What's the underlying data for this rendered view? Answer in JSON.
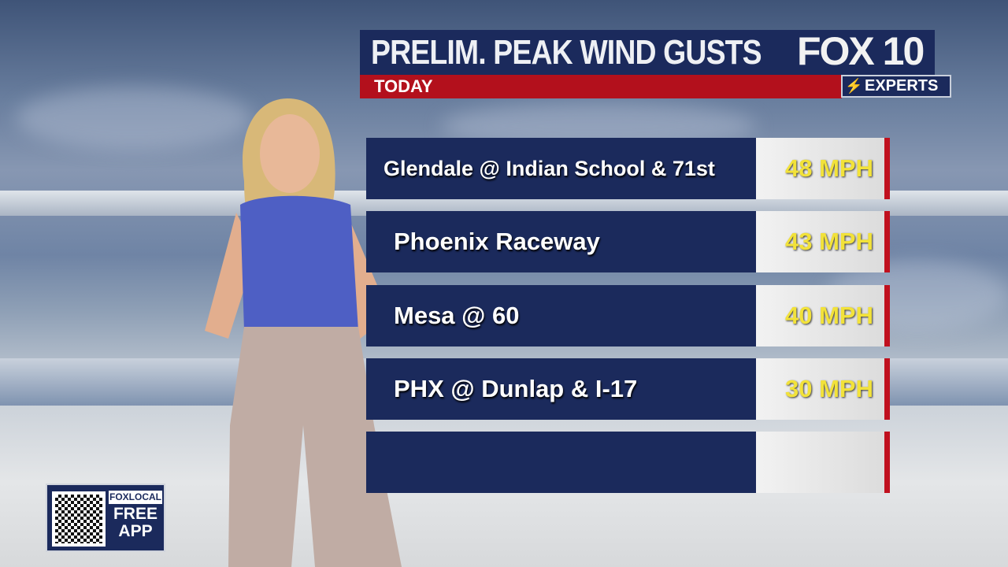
{
  "header": {
    "title": "PRELIM. PEAK WIND GUSTS",
    "subtitle": "TODAY"
  },
  "branding": {
    "logo": "FOX 10",
    "tagline": "EXPERTS"
  },
  "rows": [
    {
      "location": "Glendale @ Indian School & 71st",
      "value": "48 MPH"
    },
    {
      "location": "Phoenix Raceway",
      "value": "43 MPH"
    },
    {
      "location": "Mesa @ 60",
      "value": "40 MPH"
    },
    {
      "location": "PHX @ Dunlap & I-17",
      "value": "30 MPH"
    },
    {
      "location": "",
      "value": ""
    }
  ],
  "promo": {
    "brand": "FOXLOCAL",
    "line1": "FREE",
    "line2": "APP"
  },
  "colors": {
    "navy": "#1b2a5c",
    "red": "#b3101c",
    "value_text": "#f2e23a"
  }
}
